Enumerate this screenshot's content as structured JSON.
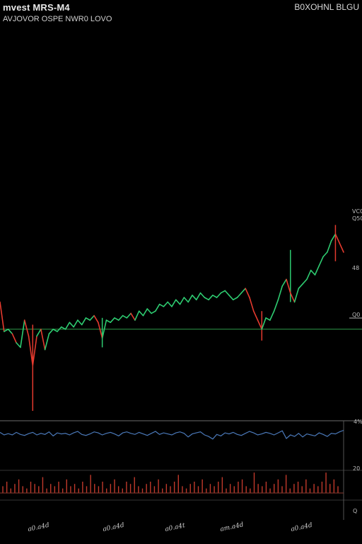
{
  "header": {
    "title": "mvest MRS-M4",
    "subtitle": "AVJOVOR OSPE NWR0 LOVO",
    "right_label": "B0XOHNL BLGU"
  },
  "colors": {
    "background": "#000000",
    "up": "#2ecc71",
    "down": "#e53a2e",
    "baseline": "#2e9a4a",
    "oscillator": "#4a78b8",
    "volume": "#c0392b",
    "panel_border": "#6b6b6b"
  },
  "chart_data": [
    {
      "type": "line",
      "panel": "price",
      "legend": "none",
      "grid": false,
      "ylim": [
        0,
        100
      ],
      "baseline": 36,
      "y_tick_labels": [
        "VCC",
        "Q50",
        "48",
        "Q0"
      ],
      "x_tick_labels": [
        "a0.a4d",
        "a0.a4d",
        "a0.a4t",
        "am.a4d",
        "a0.a4d"
      ],
      "points": [
        [
          0,
          48
        ],
        [
          2,
          35
        ],
        [
          4,
          36
        ],
        [
          6,
          34
        ],
        [
          8,
          30
        ],
        [
          10,
          28
        ],
        [
          12,
          40
        ],
        [
          14,
          33
        ],
        [
          16,
          20
        ],
        [
          18,
          33
        ],
        [
          20,
          36
        ],
        [
          22,
          27
        ],
        [
          24,
          34
        ],
        [
          26,
          36
        ],
        [
          28,
          35
        ],
        [
          30,
          37
        ],
        [
          32,
          36
        ],
        [
          34,
          39
        ],
        [
          36,
          37
        ],
        [
          38,
          40
        ],
        [
          40,
          38
        ],
        [
          42,
          41
        ],
        [
          44,
          40
        ],
        [
          46,
          42
        ],
        [
          48,
          39
        ],
        [
          50,
          32
        ],
        [
          52,
          40
        ],
        [
          54,
          39
        ],
        [
          56,
          41
        ],
        [
          58,
          40
        ],
        [
          60,
          42
        ],
        [
          62,
          41
        ],
        [
          64,
          43
        ],
        [
          66,
          40
        ],
        [
          68,
          44
        ],
        [
          70,
          42
        ],
        [
          72,
          45
        ],
        [
          74,
          43
        ],
        [
          76,
          44
        ],
        [
          78,
          47
        ],
        [
          80,
          46
        ],
        [
          82,
          48
        ],
        [
          84,
          46
        ],
        [
          86,
          49
        ],
        [
          88,
          47
        ],
        [
          90,
          50
        ],
        [
          92,
          48
        ],
        [
          94,
          51
        ],
        [
          96,
          49
        ],
        [
          98,
          52
        ],
        [
          100,
          50
        ],
        [
          102,
          49
        ],
        [
          104,
          51
        ],
        [
          106,
          50
        ],
        [
          108,
          52
        ],
        [
          110,
          53
        ],
        [
          112,
          51
        ],
        [
          114,
          49
        ],
        [
          116,
          50
        ],
        [
          118,
          52
        ],
        [
          120,
          54
        ],
        [
          122,
          50
        ],
        [
          124,
          44
        ],
        [
          126,
          40
        ],
        [
          128,
          36
        ],
        [
          130,
          41
        ],
        [
          132,
          40
        ],
        [
          134,
          44
        ],
        [
          136,
          49
        ],
        [
          138,
          55
        ],
        [
          140,
          58
        ],
        [
          142,
          52
        ],
        [
          144,
          48
        ],
        [
          146,
          54
        ],
        [
          148,
          56
        ],
        [
          150,
          58
        ],
        [
          152,
          62
        ],
        [
          154,
          60
        ],
        [
          156,
          64
        ],
        [
          158,
          68
        ],
        [
          160,
          70
        ],
        [
          162,
          75
        ],
        [
          164,
          78
        ],
        [
          166,
          74
        ],
        [
          168,
          70
        ]
      ],
      "down_segments": [
        14,
        16,
        21,
        49,
        51,
        63,
        67,
        71,
        83,
        101,
        113,
        123,
        125,
        127,
        141,
        143,
        165,
        167
      ],
      "wicks": [
        {
          "x": 16,
          "low": 0,
          "high": 38
        },
        {
          "x": 50,
          "low": 28,
          "high": 41
        },
        {
          "x": 128,
          "low": 31,
          "high": 44
        },
        {
          "x": 142,
          "low": 48,
          "high": 71
        },
        {
          "x": 164,
          "low": 66,
          "high": 82
        }
      ]
    },
    {
      "type": "line",
      "panel": "oscillator",
      "grid": false,
      "ylim": [
        0,
        10
      ],
      "y_tick_labels": [
        "4%"
      ],
      "values": [
        6,
        5,
        5.5,
        5,
        6,
        5.2,
        4.8,
        5.5,
        6,
        5,
        5.6,
        5.2,
        6.2,
        4.6,
        5.8,
        5.4,
        5.6,
        5,
        5.8,
        6.4,
        5.2,
        4.8,
        5.4,
        6.2,
        5.8,
        5,
        5.6,
        6,
        5.4,
        4.6,
        5.8,
        6.2,
        5.6,
        5.2,
        6,
        5.4,
        4.8,
        5.6,
        6.4,
        5.2,
        5.8,
        5.4,
        5,
        5.8,
        6.2,
        5.6,
        4.2,
        5.4,
        5.8,
        6.2,
        5,
        4.4,
        3.4,
        5.2,
        4.6,
        5.8,
        5.4,
        6,
        5.2,
        4.8,
        5.6,
        6.4,
        5.8,
        5,
        5.4,
        6,
        5.6,
        5,
        5.8,
        6.6,
        3.6,
        5,
        4.4,
        5.6,
        4.2,
        5.4,
        5,
        4.6,
        5.8,
        5.2,
        4.4,
        5.6,
        5.4,
        6.2,
        6.8
      ]
    },
    {
      "type": "bar",
      "panel": "volume",
      "grid": false,
      "ylim": [
        0,
        10
      ],
      "y_tick_labels": [
        "20",
        "Q"
      ],
      "values": [
        3,
        5,
        2,
        4,
        6,
        3,
        2,
        5,
        4,
        3,
        7,
        2,
        4,
        3,
        5,
        2,
        6,
        3,
        4,
        2,
        5,
        3,
        8,
        4,
        3,
        5,
        2,
        4,
        6,
        3,
        2,
        5,
        4,
        7,
        3,
        2,
        4,
        5,
        3,
        6,
        2,
        4,
        3,
        5,
        8,
        3,
        2,
        4,
        5,
        3,
        6,
        2,
        4,
        3,
        5,
        7,
        2,
        4,
        3,
        5,
        6,
        3,
        2,
        9,
        4,
        3,
        5,
        2,
        4,
        6,
        3,
        8,
        2,
        4,
        5,
        3,
        6,
        2,
        4,
        3,
        5,
        9,
        4,
        6,
        3
      ]
    }
  ]
}
